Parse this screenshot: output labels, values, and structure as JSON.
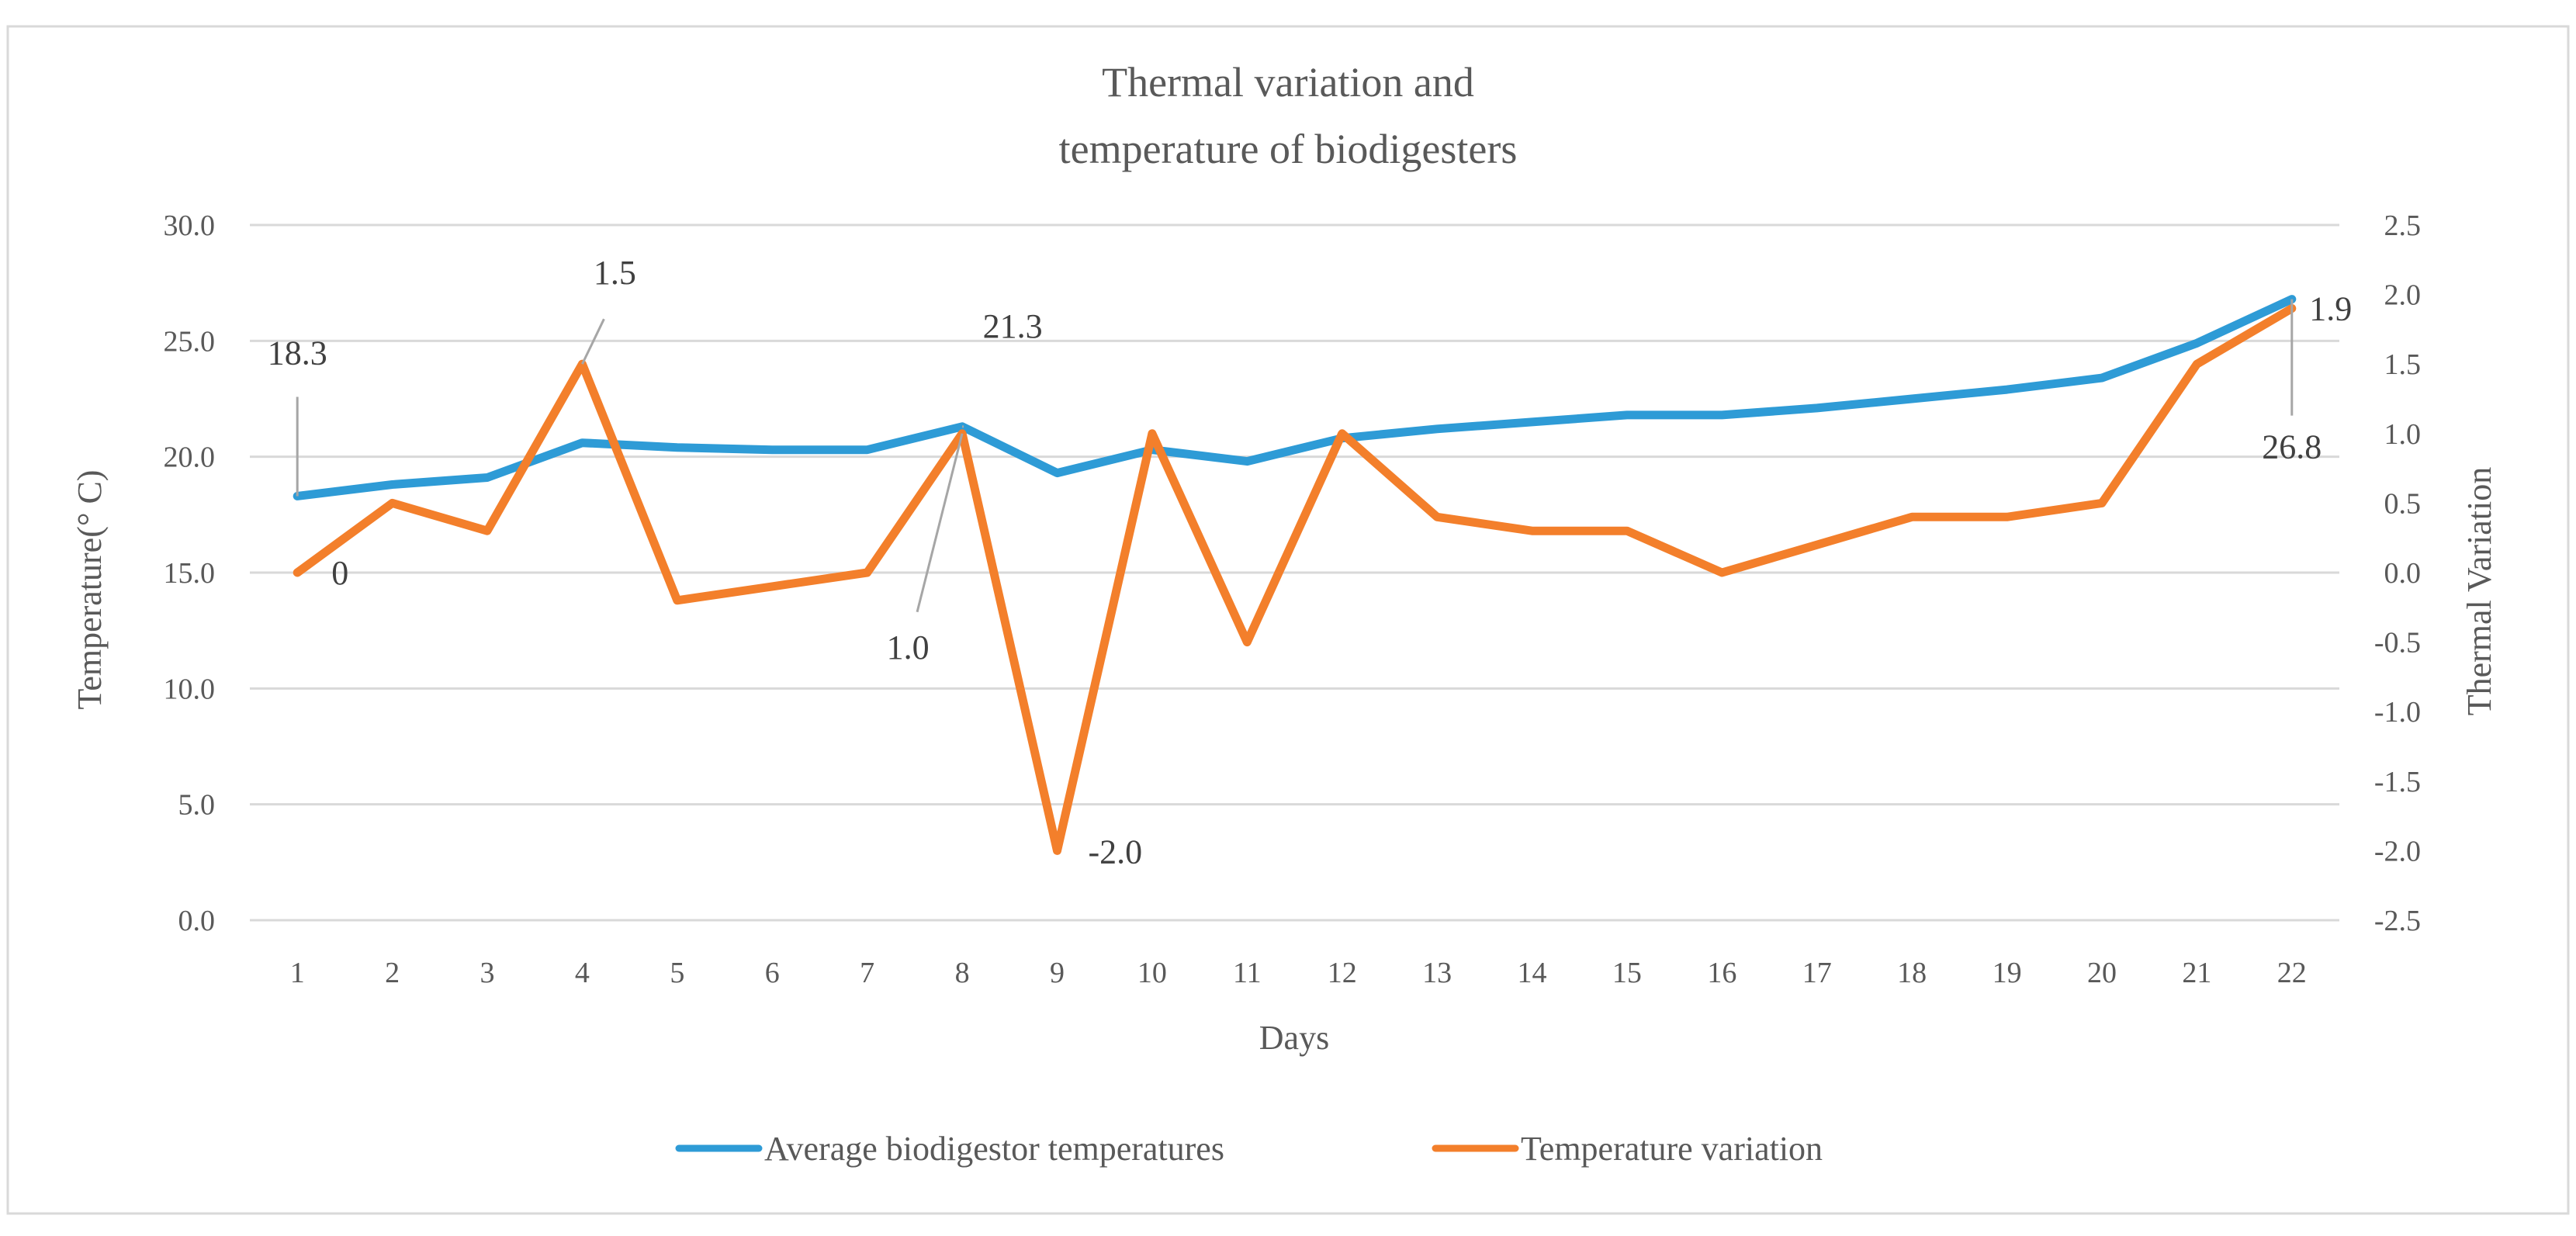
{
  "chart_data": {
    "type": "line",
    "title_lines": [
      "Thermal variation and",
      "temperature of biodigesters"
    ],
    "xlabel": "Days",
    "ylabel_left": "Temperature(° C)",
    "ylabel_right": "Thermal Variation",
    "x": [
      "1",
      "2",
      "3",
      "4",
      "5",
      "6",
      "7",
      "8",
      "9",
      "10",
      "11",
      "12",
      "13",
      "14",
      "15",
      "16",
      "17",
      "18",
      "19",
      "20",
      "21",
      "22"
    ],
    "left_axis": {
      "min": 0,
      "max": 30,
      "ticks": [
        "0.0",
        "5.0",
        "10.0",
        "15.0",
        "20.0",
        "25.0",
        "30.0"
      ],
      "tick_values": [
        0,
        5,
        10,
        15,
        20,
        25,
        30
      ]
    },
    "right_axis": {
      "min": -2.5,
      "max": 2.5,
      "ticks": [
        "-2.5",
        "-2.0",
        "-1.5",
        "-1.0",
        "-0.5",
        "0.0",
        "0.5",
        "1.0",
        "1.5",
        "2.0",
        "2.5"
      ],
      "tick_values": [
        -2.5,
        -2.0,
        -1.5,
        -1.0,
        -0.5,
        0.0,
        0.5,
        1.0,
        1.5,
        2.0,
        2.5
      ]
    },
    "series": [
      {
        "name": "Average biodigestor temperatures",
        "axis": "left",
        "color": "#2E9BD6",
        "values": [
          18.3,
          18.8,
          19.1,
          20.6,
          20.4,
          20.3,
          20.3,
          21.3,
          19.3,
          20.3,
          19.8,
          20.8,
          21.2,
          21.5,
          21.8,
          21.8,
          22.1,
          22.5,
          22.9,
          23.4,
          24.9,
          26.8
        ]
      },
      {
        "name": "Temperature variation",
        "axis": "right",
        "color": "#F37F2B",
        "values": [
          0.0,
          0.5,
          0.3,
          1.5,
          -0.2,
          -0.1,
          0.0,
          1.0,
          -2.0,
          1.0,
          -0.5,
          1.0,
          0.4,
          0.3,
          0.3,
          0.0,
          0.2,
          0.4,
          0.4,
          0.5,
          1.5,
          1.9
        ]
      }
    ],
    "annotations": [
      {
        "text": "18.3",
        "series": 0,
        "index": 0
      },
      {
        "text": "0",
        "series": 1,
        "index": 0
      },
      {
        "text": "1.5",
        "series": 1,
        "index": 3
      },
      {
        "text": "21.3",
        "series": 0,
        "index": 7
      },
      {
        "text": "1.0",
        "series": 1,
        "index": 7
      },
      {
        "text": "-2.0",
        "series": 1,
        "index": 8
      },
      {
        "text": "1.9",
        "series": 1,
        "index": 21
      },
      {
        "text": "26.8",
        "series": 0,
        "index": 21
      }
    ],
    "grid": true,
    "legend_position": "bottom"
  }
}
